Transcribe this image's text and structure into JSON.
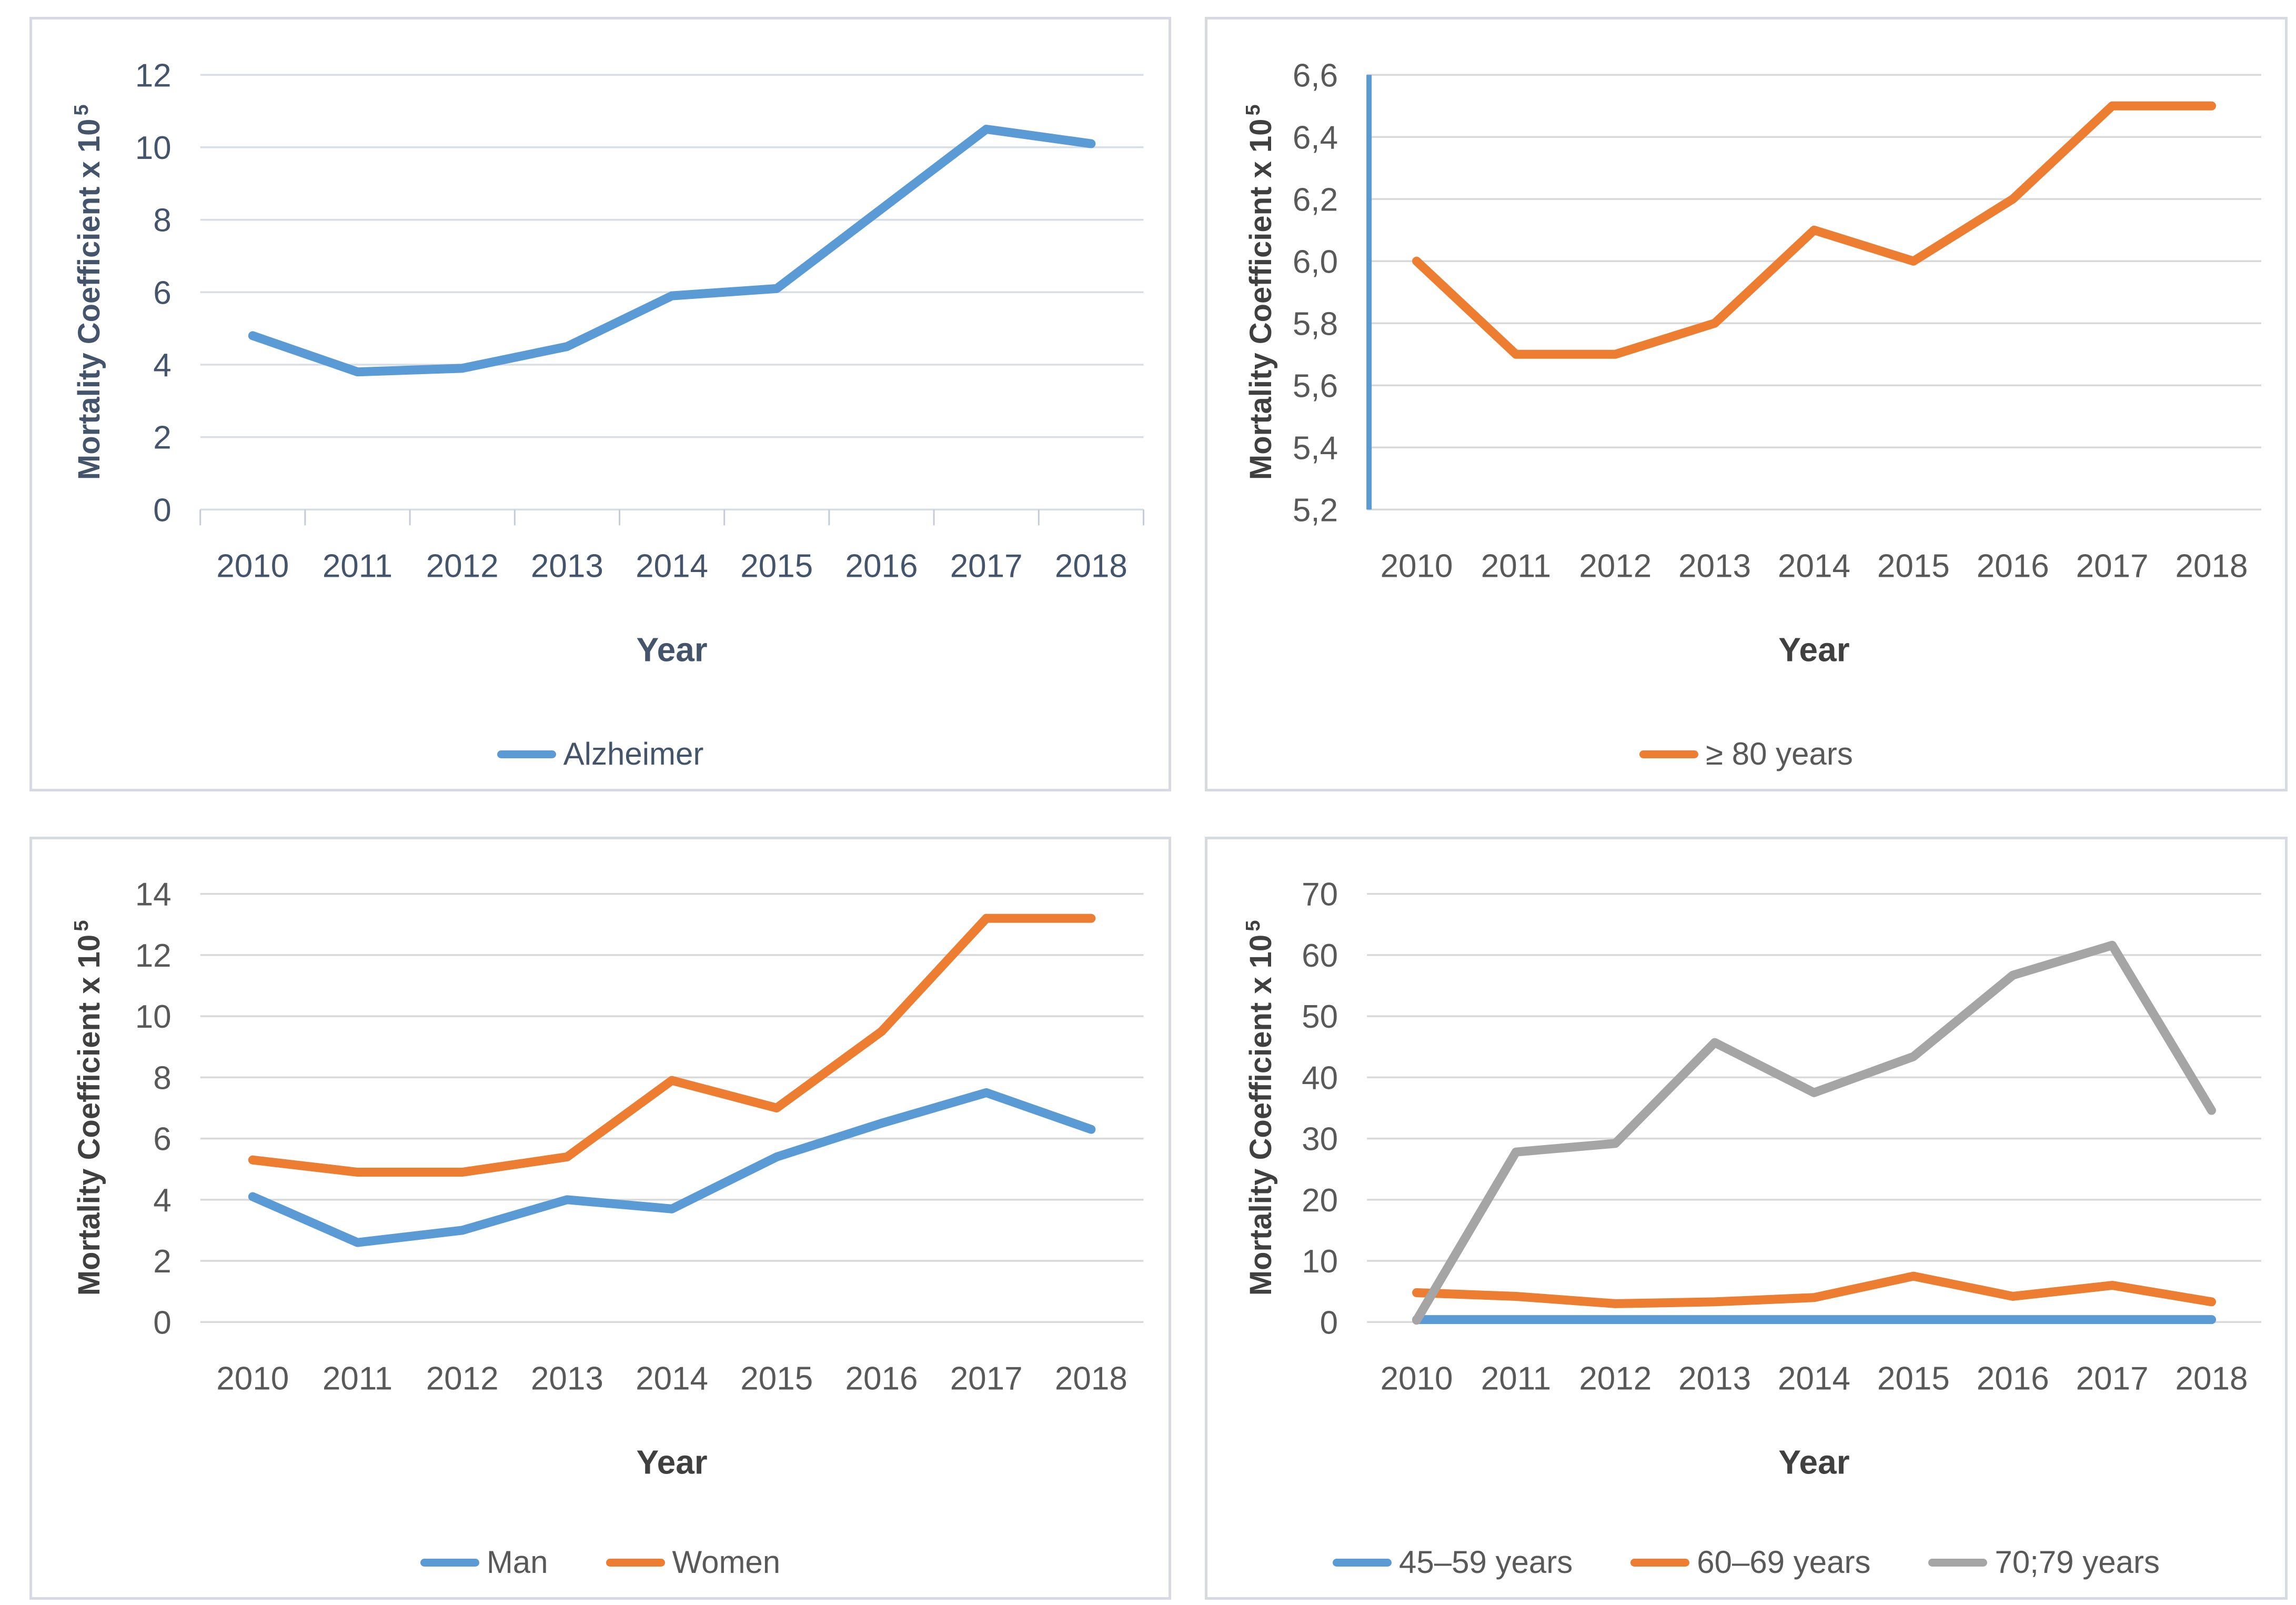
{
  "theme": {
    "background": "#FFFFFF",
    "panel_border_color": "#D7DAE0",
    "accent_blue": "#5B9BD5",
    "accent_orange": "#ED7D31",
    "accent_gray": "#A5A5A5"
  },
  "chart_data": [
    {
      "id": "alzheimer",
      "type": "line",
      "title": "",
      "xlabel": "Year",
      "ylabel": "Mortality Coefficient x 10",
      "ylabel_sup": "5",
      "categories": [
        "2010",
        "2011",
        "2012",
        "2013",
        "2014",
        "2015",
        "2016",
        "2017",
        "2018"
      ],
      "ylim": [
        0,
        12
      ],
      "ytick_values": [
        0,
        2,
        4,
        6,
        8,
        10,
        12
      ],
      "ytick_labels": [
        "0",
        "2",
        "4",
        "6",
        "8",
        "10",
        "12"
      ],
      "grid": true,
      "legend_position": "bottom",
      "series": [
        {
          "name": "Alzheimer",
          "color": "#5B9BD5",
          "values": [
            4.8,
            3.8,
            3.9,
            4.5,
            5.9,
            6.1,
            8.3,
            10.5,
            10.1
          ]
        }
      ],
      "style": {
        "tick_color": "#44546A",
        "title_color": "#44546A",
        "legend_text_color": "#44546A",
        "grid_color": "#D8DEE7",
        "axis_tick_color": "#C3CCD8",
        "x_tick_marks": true,
        "yaxis_line_color": null
      }
    },
    {
      "id": "age-80-plus",
      "type": "line",
      "title": "",
      "xlabel": "Year",
      "ylabel": "Mortality Coefficient x 10",
      "ylabel_sup": "5",
      "categories": [
        "2010",
        "2011",
        "2012",
        "2013",
        "2014",
        "2015",
        "2016",
        "2017",
        "2018"
      ],
      "ylim": [
        5.2,
        6.6
      ],
      "ytick_values": [
        5.2,
        5.4,
        5.6,
        5.8,
        6.0,
        6.2,
        6.4,
        6.6
      ],
      "ytick_labels": [
        "5,2",
        "5,4",
        "5,6",
        "5,8",
        "6,0",
        "6,2",
        "6,4",
        "6,6"
      ],
      "grid": true,
      "legend_position": "bottom",
      "series": [
        {
          "name": "≥ 80 years",
          "color": "#ED7D31",
          "values": [
            6.0,
            5.7,
            5.7,
            5.8,
            6.1,
            6.0,
            6.2,
            6.5,
            6.5
          ]
        }
      ],
      "style": {
        "tick_color": "#595959",
        "title_color": "#404040",
        "legend_text_color": "#595959",
        "grid_color": "#D9D9D9",
        "axis_tick_color": "#D9D9D9",
        "x_tick_marks": false,
        "yaxis_line_color": "#5B9BD5"
      }
    },
    {
      "id": "man-women",
      "type": "line",
      "title": "",
      "xlabel": "Year",
      "ylabel": "Mortality Coefficient x 10",
      "ylabel_sup": "5",
      "categories": [
        "2010",
        "2011",
        "2012",
        "2013",
        "2014",
        "2015",
        "2016",
        "2017",
        "2018"
      ],
      "ylim": [
        0,
        14
      ],
      "ytick_values": [
        0,
        2,
        4,
        6,
        8,
        10,
        12,
        14
      ],
      "ytick_labels": [
        "0",
        "2",
        "4",
        "6",
        "8",
        "10",
        "12",
        "14"
      ],
      "grid": true,
      "legend_position": "bottom",
      "series": [
        {
          "name": "Man",
          "color": "#5B9BD5",
          "values": [
            4.1,
            2.6,
            3.0,
            4.0,
            3.7,
            5.4,
            6.5,
            7.5,
            6.3
          ]
        },
        {
          "name": "Women",
          "color": "#ED7D31",
          "values": [
            5.3,
            4.9,
            4.9,
            5.4,
            7.9,
            7.0,
            9.5,
            13.2,
            13.2
          ]
        }
      ],
      "style": {
        "tick_color": "#595959",
        "title_color": "#404040",
        "legend_text_color": "#595959",
        "grid_color": "#D9D9D9",
        "axis_tick_color": "#D9D9D9",
        "x_tick_marks": false,
        "yaxis_line_color": null
      }
    },
    {
      "id": "age-groups",
      "type": "line",
      "title": "",
      "xlabel": "Year",
      "ylabel": "Mortality Coefficient x 10",
      "ylabel_sup": "5",
      "categories": [
        "2010",
        "2011",
        "2012",
        "2013",
        "2014",
        "2015",
        "2016",
        "2017",
        "2018"
      ],
      "ylim": [
        0,
        70
      ],
      "ytick_values": [
        0,
        10,
        20,
        30,
        40,
        50,
        60,
        70
      ],
      "ytick_labels": [
        "0",
        "10",
        "20",
        "30",
        "40",
        "50",
        "60",
        "70"
      ],
      "grid": true,
      "legend_position": "bottom",
      "series": [
        {
          "name": "45–59 years",
          "color": "#5B9BD5",
          "values": [
            0.4,
            0.4,
            0.4,
            0.4,
            0.4,
            0.4,
            0.4,
            0.4,
            0.4
          ]
        },
        {
          "name": "60–69 years",
          "color": "#ED7D31",
          "values": [
            4.8,
            4.2,
            3.0,
            3.3,
            4.0,
            7.5,
            4.2,
            6.0,
            3.3
          ]
        },
        {
          "name": "70;79 years",
          "color": "#A5A5A5",
          "values": [
            0.3,
            27.8,
            29.2,
            45.7,
            37.5,
            43.4,
            56.7,
            61.6,
            34.6
          ]
        }
      ],
      "style": {
        "tick_color": "#595959",
        "title_color": "#404040",
        "legend_text_color": "#595959",
        "grid_color": "#D9D9D9",
        "axis_tick_color": "#D9D9D9",
        "x_tick_marks": false,
        "yaxis_line_color": null
      }
    }
  ]
}
